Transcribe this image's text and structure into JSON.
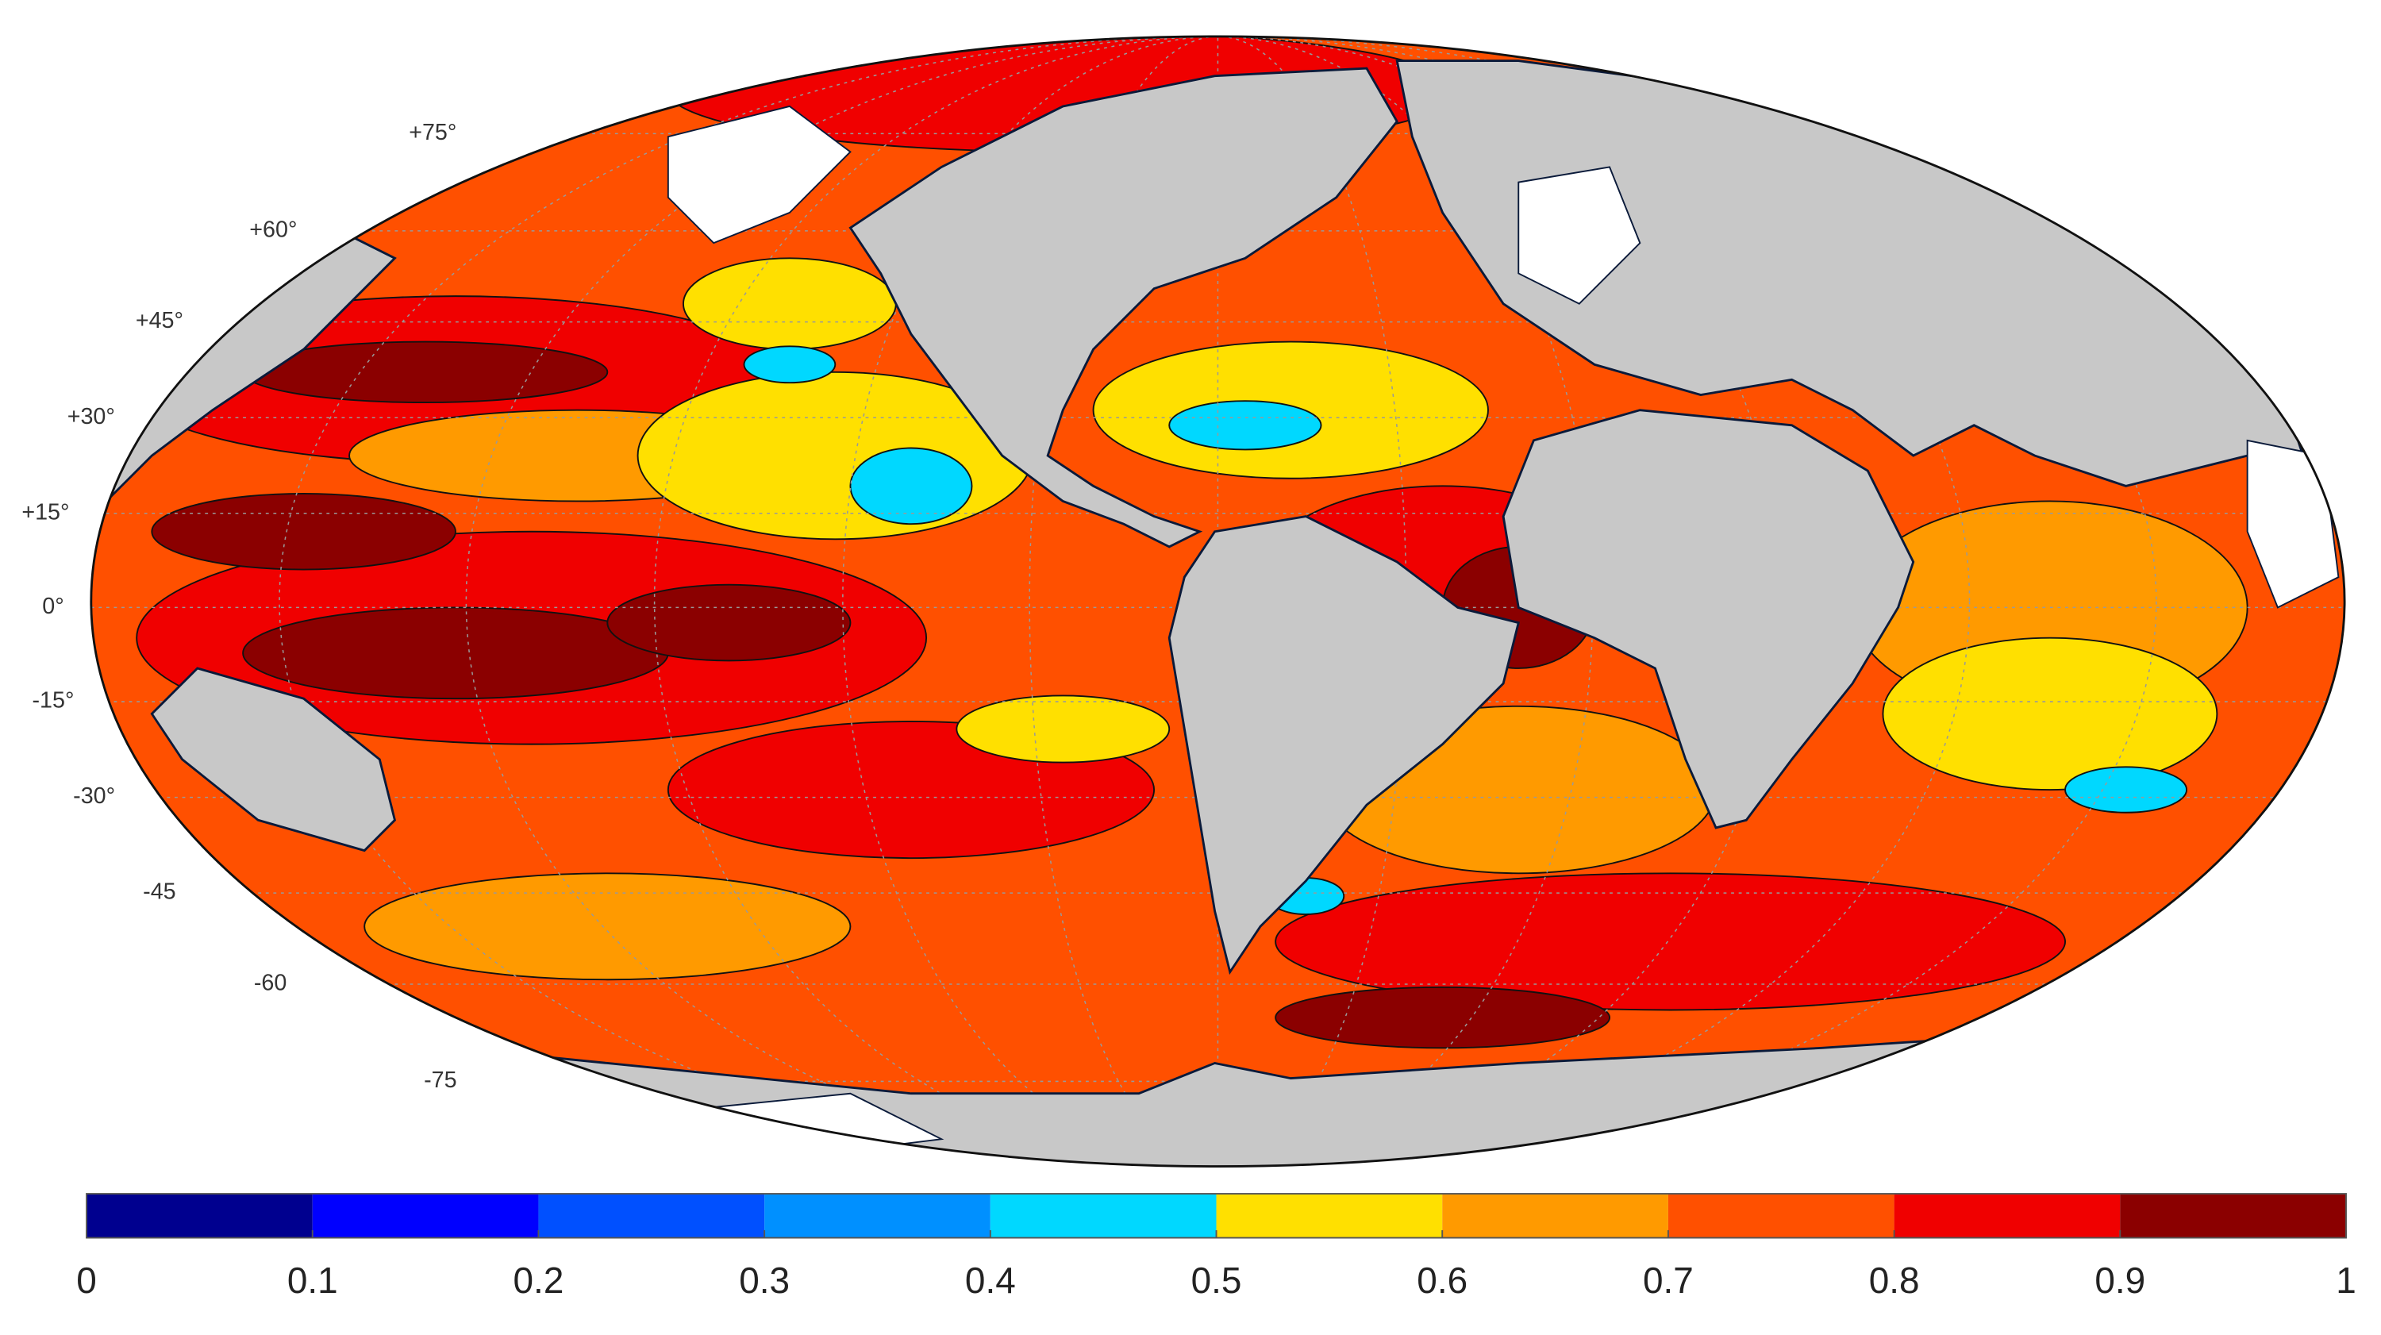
{
  "map": {
    "lat_labels": [
      "+75°",
      "+60°",
      "+45°",
      "+30°",
      "+15°",
      "0°",
      "-15°",
      "-30°",
      "-45",
      "-60",
      "-75"
    ],
    "colorbar": {
      "lim": [
        0,
        1
      ],
      "ticks": [
        0,
        0.1,
        0.2,
        0.3,
        0.4,
        0.5,
        0.6,
        0.7,
        0.8,
        0.9,
        1
      ],
      "colors": [
        "#00008f",
        "#0000ff",
        "#0050ff",
        "#0090ff",
        "#00d8ff",
        "#ffe000",
        "#ff9a00",
        "#ff5000",
        "#f00000",
        "#8b0000"
      ]
    }
  }
}
